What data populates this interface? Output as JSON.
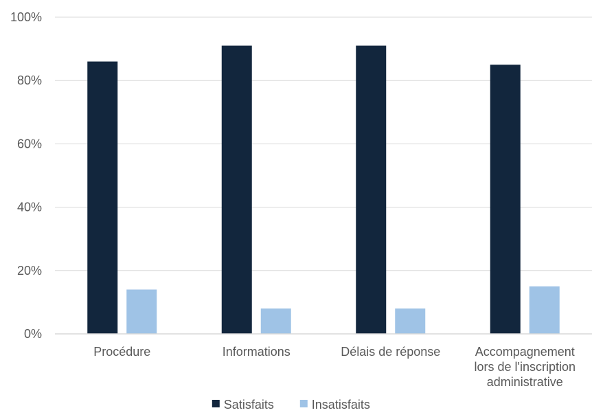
{
  "chart_data": {
    "type": "bar",
    "categories": [
      [
        "Procédure"
      ],
      [
        "Informations"
      ],
      [
        "Délais de réponse"
      ],
      [
        "Accompagnement",
        "lors de l'inscription",
        "administrative"
      ]
    ],
    "series": [
      {
        "name": "Satisfaits",
        "color": "#12263d",
        "values": [
          86,
          91,
          91,
          85
        ]
      },
      {
        "name": "Insatisfaits",
        "color": "#9fc3e6",
        "values": [
          14,
          8,
          8,
          15
        ]
      }
    ],
    "y_ticks": [
      "0%",
      "20%",
      "40%",
      "60%",
      "80%",
      "100%"
    ],
    "ylim": [
      0,
      100
    ],
    "grid": true,
    "legend_position": "bottom"
  }
}
